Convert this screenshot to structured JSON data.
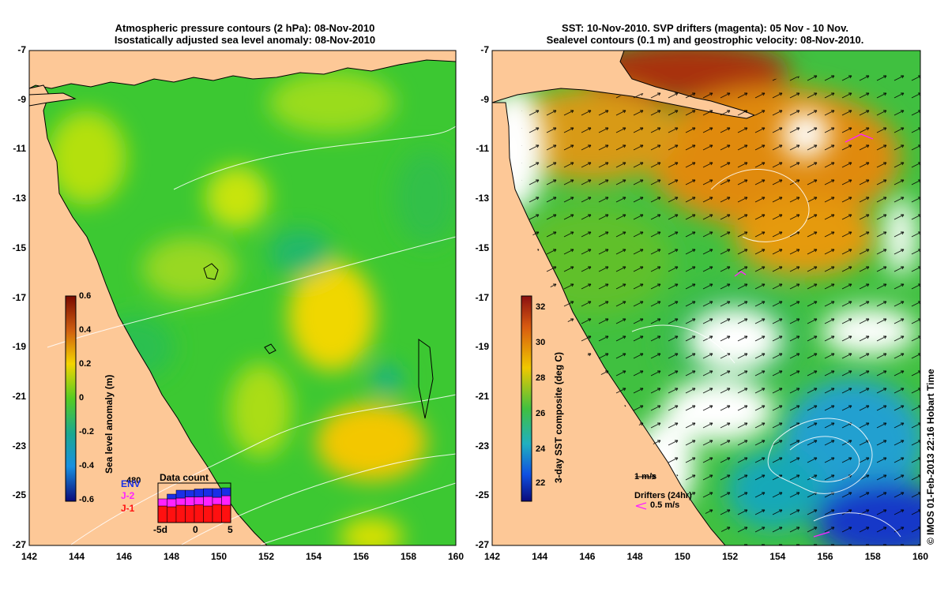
{
  "left_map": {
    "title_line1": "Atmospheric pressure contours (2 hPa): 08-Nov-2010",
    "title_line2": "Isostatically adjusted sea level anomaly: 08-Nov-2010",
    "colorbar": {
      "title": "Sea level anomaly (m)",
      "ticks": [
        "0.6",
        "0.4",
        "0.2",
        "0",
        "-0.2",
        "-0.4",
        "-0.6"
      ]
    },
    "data_count": {
      "title": "Data count",
      "max_label": "480",
      "missions": [
        "ENV",
        "J-2",
        "J-1"
      ],
      "x_labels": [
        "-5d",
        "0",
        "5"
      ],
      "colors": {
        "ENV": "#1a2fe6",
        "J-2": "#ff22ff",
        "J-1": "#ff1010"
      },
      "bars": [
        {
          "J-1": 0.42,
          "J-2": 0.18,
          "ENV": 0.0
        },
        {
          "J-1": 0.4,
          "J-2": 0.2,
          "ENV": 0.12
        },
        {
          "J-1": 0.44,
          "J-2": 0.18,
          "ENV": 0.2
        },
        {
          "J-1": 0.43,
          "J-2": 0.22,
          "ENV": 0.17
        },
        {
          "J-1": 0.45,
          "J-2": 0.2,
          "ENV": 0.2
        },
        {
          "J-1": 0.42,
          "J-2": 0.24,
          "ENV": 0.2
        },
        {
          "J-1": 0.46,
          "J-2": 0.18,
          "ENV": 0.22
        },
        {
          "J-1": 0.44,
          "J-2": 0.24,
          "ENV": 0.2
        }
      ]
    }
  },
  "right_map": {
    "title_line1": "SST: 10-Nov-2010. SVP drifters (magenta): 05 Nov - 10 Nov.",
    "title_line2": "Sealevel contours (0.1 m) and geostrophic velocity: 08-Nov-2010.",
    "colorbar": {
      "title": "3-day SST composite (deg C)",
      "ticks": [
        "32",
        "30",
        "28",
        "26",
        "24",
        "22"
      ]
    },
    "legend": {
      "velocity": "1 m/s",
      "drifters": "Drifters (24hr)",
      "drifter_speed": "0.5 m/s"
    }
  },
  "axes": {
    "lat_ticks": [
      "-7",
      "-9",
      "-11",
      "-13",
      "-15",
      "-17",
      "-19",
      "-21",
      "-23",
      "-25",
      "-27"
    ],
    "lon_ticks": [
      "142",
      "144",
      "146",
      "148",
      "150",
      "152",
      "154",
      "156",
      "158",
      "160"
    ]
  },
  "credit": "© IMOS 01-Feb-2013 22:16 Hobart Time",
  "colors": {
    "land": "#fdc897",
    "ocean_mid": "#44cc22",
    "cloud": "#ffffff"
  }
}
